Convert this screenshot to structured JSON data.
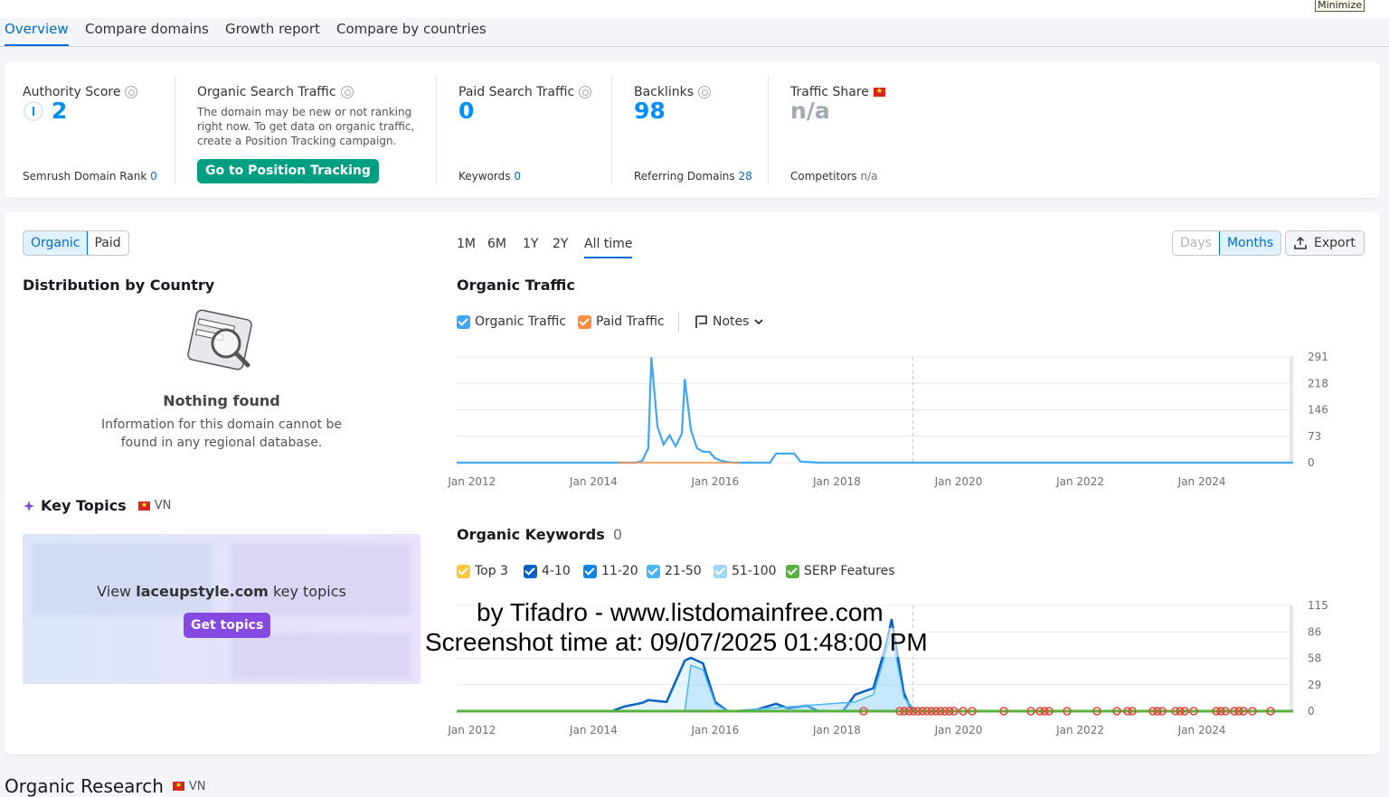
{
  "window": {
    "minimize_label": "Minimize"
  },
  "tabs": [
    "Overview",
    "Compare domains",
    "Growth report",
    "Compare by countries"
  ],
  "metrics": {
    "authority": {
      "label": "Authority Score",
      "value": "2",
      "sub_label": "Semrush Domain Rank",
      "sub_value": "0"
    },
    "organic": {
      "label": "Organic Search Traffic",
      "note_line1": "The domain may be new or not ranking",
      "note_line2": "right now. To get data on organic traffic,",
      "note_line3": "create a Position Tracking campaign.",
      "button": "Go to Position Tracking"
    },
    "paid": {
      "label": "Paid Search Traffic",
      "value": "0",
      "sub_label": "Keywords",
      "sub_value": "0"
    },
    "backlinks": {
      "label": "Backlinks",
      "value": "98",
      "sub_label": "Referring Domains",
      "sub_value": "28"
    },
    "share": {
      "label": "Traffic Share",
      "value": "n/a",
      "sub_label": "Competitors",
      "sub_value": "n/a"
    }
  },
  "toggle": {
    "organic": "Organic",
    "paid": "Paid"
  },
  "periods": [
    "1M",
    "6M",
    "1Y",
    "2Y",
    "All time"
  ],
  "granularity": {
    "days": "Days",
    "months": "Months"
  },
  "export_label": "Export",
  "distribution": {
    "title": "Distribution by Country",
    "empty_title": "Nothing found",
    "empty_line1": "Information for this domain cannot be",
    "empty_line2": "found in any regional database."
  },
  "key_topics": {
    "title": "Key Topics",
    "country": "VN",
    "view_prefix": "View",
    "domain": "laceupstyle.com",
    "view_suffix": "key topics",
    "button": "Get topics"
  },
  "traffic_chart_title": "Organic Traffic",
  "traffic_legend": {
    "organic": "Organic Traffic",
    "paid": "Paid Traffic",
    "notes": "Notes"
  },
  "keywords_title": "Organic Keywords",
  "keywords_count": "0",
  "keywords_legend": [
    "Top 3",
    "4-10",
    "11-20",
    "21-50",
    "51-100",
    "SERP Features"
  ],
  "colors": {
    "accent": "#006dca",
    "organic": "#3ea6f5",
    "paid": "#ff8c42",
    "serp": "#57b33c",
    "green_btn": "#009f81",
    "purple_btn": "#8649e1"
  },
  "watermark": {
    "line1": "by Tifadro - www.listdomainfree.com",
    "line2": "Screenshot time at: 09/07/2025 01:48:00 PM"
  },
  "research": {
    "title": "Organic Research",
    "country": "VN"
  },
  "chart_data": [
    {
      "type": "line",
      "title": "Organic Traffic",
      "x_ticks": [
        "Jan 2012",
        "Jan 2014",
        "Jan 2016",
        "Jan 2018",
        "Jan 2020",
        "Jan 2022",
        "Jan 2024"
      ],
      "y_ticks": [
        "0",
        "73",
        "146",
        "218",
        "291"
      ],
      "ylim": [
        0,
        291
      ],
      "xlim": [
        2011.75,
        2025.5
      ],
      "series": [
        {
          "name": "Organic Traffic",
          "x": [
            2011.75,
            2014.7,
            2014.8,
            2014.9,
            2014.95,
            2015.05,
            2015.15,
            2015.25,
            2015.35,
            2015.45,
            2015.5,
            2015.6,
            2015.7,
            2015.8,
            2015.9,
            2016.0,
            2016.1,
            2016.2,
            2016.3,
            2016.9,
            2017.0,
            2017.3,
            2017.4,
            2017.7,
            2025.5
          ],
          "y": [
            0,
            0,
            5,
            40,
            290,
            100,
            50,
            75,
            45,
            80,
            230,
            90,
            40,
            30,
            30,
            12,
            5,
            2,
            0,
            0,
            25,
            25,
            3,
            0,
            0
          ]
        },
        {
          "name": "Paid Traffic",
          "x": [
            2014.4,
            2016.4
          ],
          "y": [
            0,
            0
          ]
        }
      ],
      "grid": true
    },
    {
      "type": "area",
      "title": "Organic Keywords",
      "x_ticks": [
        "Jan 2012",
        "Jan 2014",
        "Jan 2016",
        "Jan 2018",
        "Jan 2020",
        "Jan 2022",
        "Jan 2024"
      ],
      "y_ticks": [
        "0",
        "29",
        "58",
        "86",
        "115"
      ],
      "ylim": [
        0,
        115
      ],
      "xlim": [
        2011.75,
        2025.5
      ],
      "series": [
        {
          "name": "4-10",
          "x": [
            2011.75,
            2014.3,
            2014.5,
            2014.8,
            2014.9,
            2015.2,
            2015.5,
            2015.6,
            2015.8,
            2016.0,
            2016.2,
            2016.6,
            2017.0,
            2017.2,
            2017.5,
            2017.7,
            2018.1,
            2018.3,
            2018.6,
            2018.8,
            2018.9,
            2019.0,
            2019.1,
            2019.2,
            2019.3,
            2025.5
          ],
          "y": [
            0,
            0,
            5,
            9,
            12,
            10,
            55,
            58,
            52,
            10,
            0,
            0,
            8,
            3,
            6,
            0,
            0,
            18,
            25,
            70,
            100,
            60,
            20,
            5,
            0,
            0
          ]
        },
        {
          "name": "51-100",
          "x": [
            2011.75,
            2015.5,
            2015.6,
            2015.8,
            2016.0,
            2016.2,
            2018.3,
            2018.6,
            2018.9,
            2019.1,
            2019.3,
            2025.5
          ],
          "y": [
            0,
            0,
            50,
            45,
            8,
            0,
            10,
            18,
            85,
            15,
            0,
            0
          ]
        },
        {
          "name": "SERP Features",
          "x": [
            2011.75,
            2025.5
          ],
          "y": [
            0,
            0
          ]
        }
      ],
      "grid": true
    }
  ]
}
